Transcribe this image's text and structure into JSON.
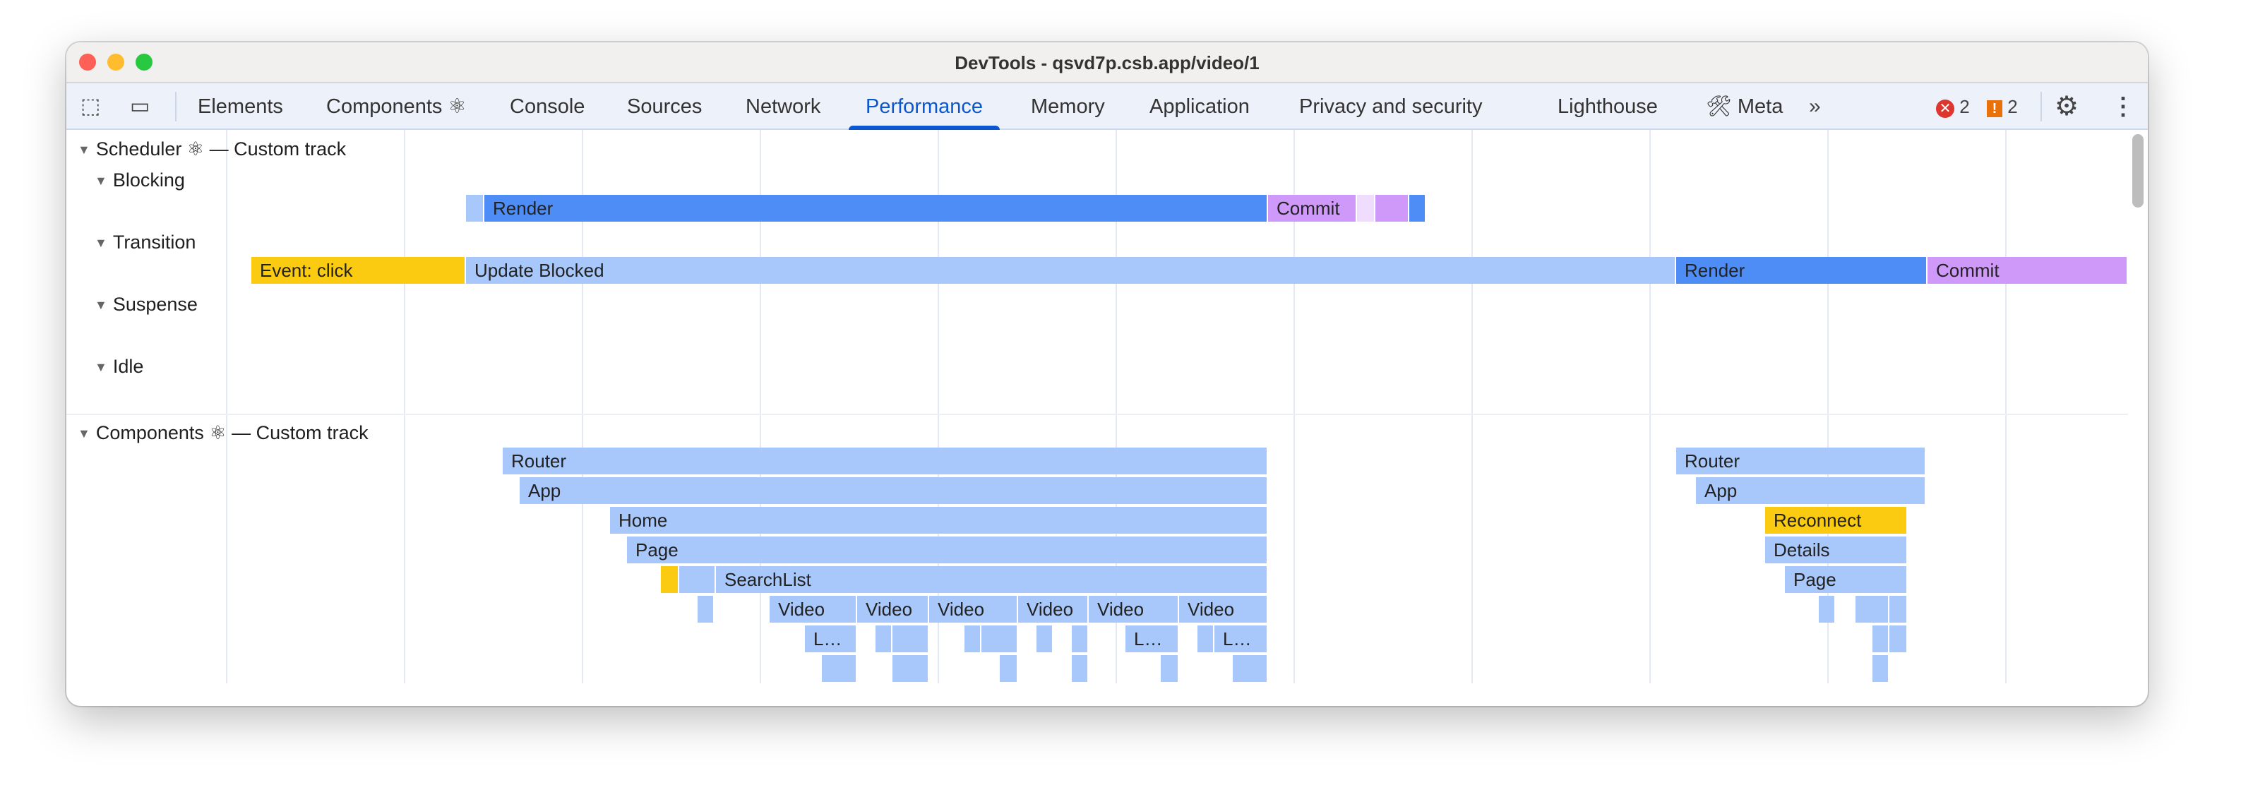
{
  "window": {
    "title": "DevTools - qsvd7p.csb.app/video/1"
  },
  "toolbar": {
    "icons": [
      "inspect-element-icon",
      "device-toolbar-icon"
    ],
    "tabs": [
      {
        "label": "Elements"
      },
      {
        "label": "Components ⚛"
      },
      {
        "label": "Console"
      },
      {
        "label": "Sources"
      },
      {
        "label": "Network"
      },
      {
        "label": "Performance",
        "active": true
      },
      {
        "label": "Memory"
      },
      {
        "label": "Application"
      },
      {
        "label": "Privacy and security"
      },
      {
        "label": "Lighthouse"
      },
      {
        "label": "🛠 Meta"
      }
    ],
    "more_label": "»",
    "errors": "2",
    "warnings": "2"
  },
  "colors": {
    "render": "#4d8df5",
    "light": "#a8c7fa",
    "commit": "#cf99f9",
    "commit_light": "#f0dcfd",
    "event": "#fbcb12",
    "accent": "#0b57d0"
  },
  "scheduler": {
    "title": "Scheduler ⚛ — Custom track",
    "lanes": [
      {
        "label": "Blocking"
      },
      {
        "label": "Transition"
      },
      {
        "label": "Suspense"
      },
      {
        "label": "Idle"
      }
    ],
    "blocking_bars": [
      "",
      "Render",
      "Commit",
      "",
      "",
      ""
    ],
    "transition_bars": [
      "Event: click",
      "Update Blocked",
      "Render",
      "Commit"
    ]
  },
  "components": {
    "title": "Components ⚛ — Custom track",
    "bars": [
      "Router",
      "Router",
      "App",
      "App",
      "Home",
      "Reconnect",
      "Page",
      "Details",
      "SearchList",
      "Page",
      "Video",
      "Video",
      "Video",
      "Video",
      "Video",
      "Video",
      "L…",
      "L…",
      "L…"
    ]
  }
}
